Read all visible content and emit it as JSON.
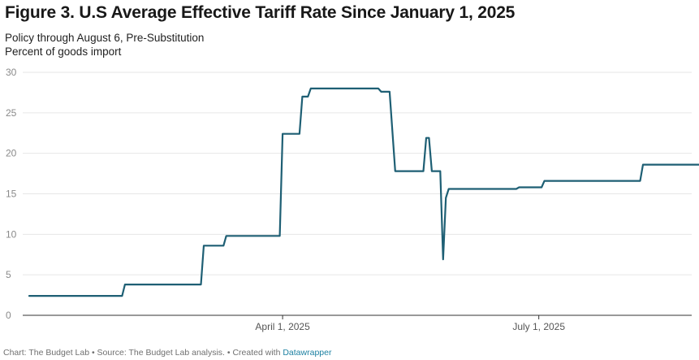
{
  "title": "Figure 3. U.S Average Effective Tariff Rate Since January 1, 2025",
  "subtitle_lines": [
    "Policy through August 6, Pre-Substitution",
    "Percent of goods import"
  ],
  "footer": {
    "prefix": "Chart: The Budget Lab • Source: The Budget Lab analysis. • Created with",
    "link_text": "Datawrapper"
  },
  "colors": {
    "line": "#1e5f74",
    "grid": "#e6e6e6",
    "axis": "#333333"
  },
  "chart_data": {
    "type": "line",
    "title": "Figure 3. U.S Average Effective Tariff Rate Since January 1, 2025",
    "xlabel": "",
    "ylabel": "",
    "ylim": [
      0,
      30
    ],
    "xlim": [
      "2025-01-01",
      "2025-08-22"
    ],
    "y_ticks": [
      0,
      5,
      10,
      15,
      20,
      25,
      30
    ],
    "x_ticks": [
      {
        "date": "2025-04-01",
        "label": "April 1, 2025"
      },
      {
        "date": "2025-07-01",
        "label": "July 1, 2025"
      }
    ],
    "grid": true,
    "series": [
      {
        "points": [
          [
            "2025-01-01",
            2.4
          ],
          [
            "2025-02-03",
            2.4
          ],
          [
            "2025-02-04",
            3.8
          ],
          [
            "2025-03-03",
            3.8
          ],
          [
            "2025-03-04",
            8.6
          ],
          [
            "2025-03-11",
            8.6
          ],
          [
            "2025-03-12",
            9.8
          ],
          [
            "2025-03-31",
            9.8
          ],
          [
            "2025-04-01",
            22.4
          ],
          [
            "2025-04-07",
            22.4
          ],
          [
            "2025-04-08",
            27.0
          ],
          [
            "2025-04-10",
            27.0
          ],
          [
            "2025-04-11",
            28.0
          ],
          [
            "2025-05-05",
            28.0
          ],
          [
            "2025-05-06",
            27.6
          ],
          [
            "2025-05-09",
            27.6
          ],
          [
            "2025-05-11",
            17.8
          ],
          [
            "2025-05-21",
            17.8
          ],
          [
            "2025-05-22",
            21.9
          ],
          [
            "2025-05-23",
            21.9
          ],
          [
            "2025-05-24",
            17.8
          ],
          [
            "2025-05-27",
            17.8
          ],
          [
            "2025-05-28",
            6.9
          ],
          [
            "2025-05-29",
            14.5
          ],
          [
            "2025-05-30",
            15.6
          ],
          [
            "2025-06-23",
            15.6
          ],
          [
            "2025-06-24",
            15.8
          ],
          [
            "2025-07-02",
            15.8
          ],
          [
            "2025-07-03",
            16.6
          ],
          [
            "2025-08-06",
            16.6
          ],
          [
            "2025-08-07",
            18.6
          ],
          [
            "2025-08-30",
            18.6
          ]
        ]
      }
    ]
  }
}
